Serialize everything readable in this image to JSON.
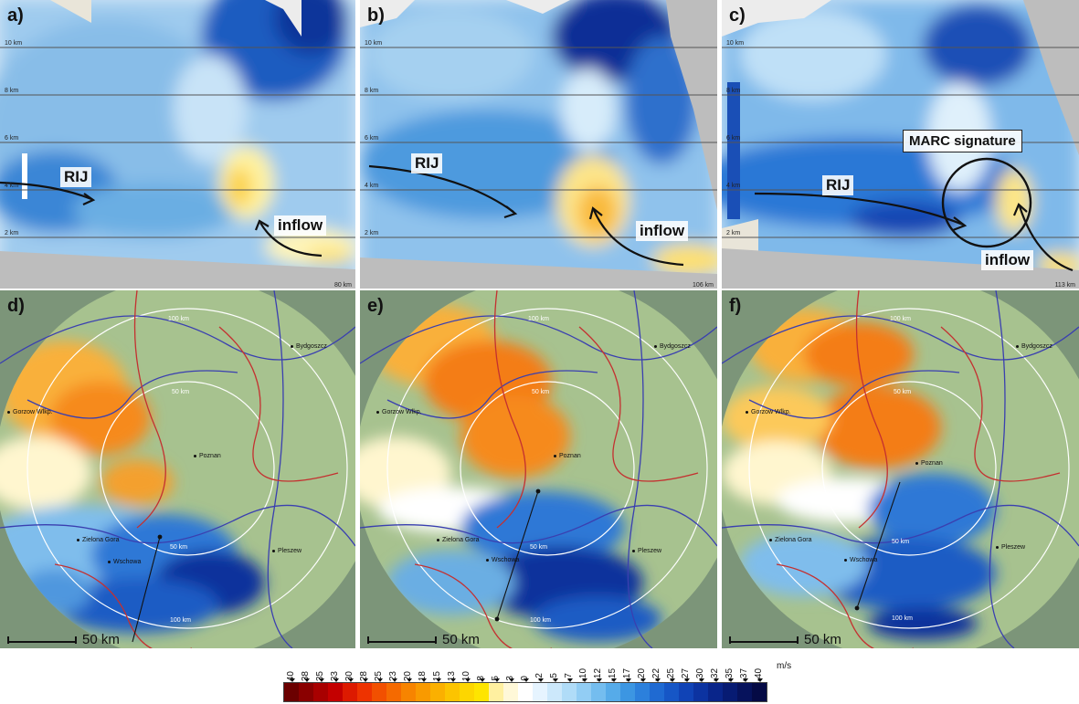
{
  "cross_sections": [
    {
      "label": "a)",
      "range_label": "80 km",
      "rij": "RIJ",
      "inflow": "inflow"
    },
    {
      "label": "b)",
      "range_label": "106 km",
      "rij": "RIJ",
      "inflow": "inflow"
    },
    {
      "label": "c)",
      "range_label": "113 km",
      "rij": "RIJ",
      "inflow": "inflow",
      "marc": "MARC signature"
    }
  ],
  "height_labels": [
    "10 km",
    "8 km",
    "6 km",
    "4 km",
    "2 km"
  ],
  "ppi_panels": [
    {
      "label": "d)"
    },
    {
      "label": "e)"
    },
    {
      "label": "f)"
    }
  ],
  "cities": {
    "bydgoszcz": "Bydgoszcz",
    "gorzow": "Gorzow Wlkp.",
    "poznan": "Poznan",
    "zielona_gora": "Zielona Gora",
    "wschowa": "Wschowa",
    "pleszew": "Pleszew"
  },
  "rings": {
    "inner": "50 km",
    "outer": "100 km"
  },
  "scale_bar": "50 km",
  "legend": {
    "unit": "m/s",
    "ticks": [
      "40",
      "38",
      "35",
      "33",
      "30",
      "28",
      "25",
      "23",
      "20",
      "18",
      "15",
      "13",
      "10",
      "8",
      "5",
      "3",
      "0",
      "-2",
      "-5",
      "-7",
      "-10",
      "-12",
      "-15",
      "-17",
      "-20",
      "-22",
      "-25",
      "-27",
      "-30",
      "-32",
      "-35",
      "-37",
      "-40"
    ],
    "colors": [
      "#6b0000",
      "#8a0000",
      "#a80000",
      "#c40000",
      "#dd1a00",
      "#ee3300",
      "#f25000",
      "#f56a00",
      "#f78400",
      "#f99a00",
      "#fbb000",
      "#fcc400",
      "#fdd600",
      "#fee500",
      "#fff0a0",
      "#fff8d8",
      "#ffffff",
      "#e6f4ff",
      "#cce8fb",
      "#b0dcf8",
      "#92cdf4",
      "#74bdef",
      "#56abe9",
      "#3c96e2",
      "#2c80dc",
      "#1f6ad2",
      "#1656c6",
      "#1043b6",
      "#0c33a1",
      "#09258a",
      "#071b73",
      "#06125c",
      "#050a45"
    ]
  }
}
